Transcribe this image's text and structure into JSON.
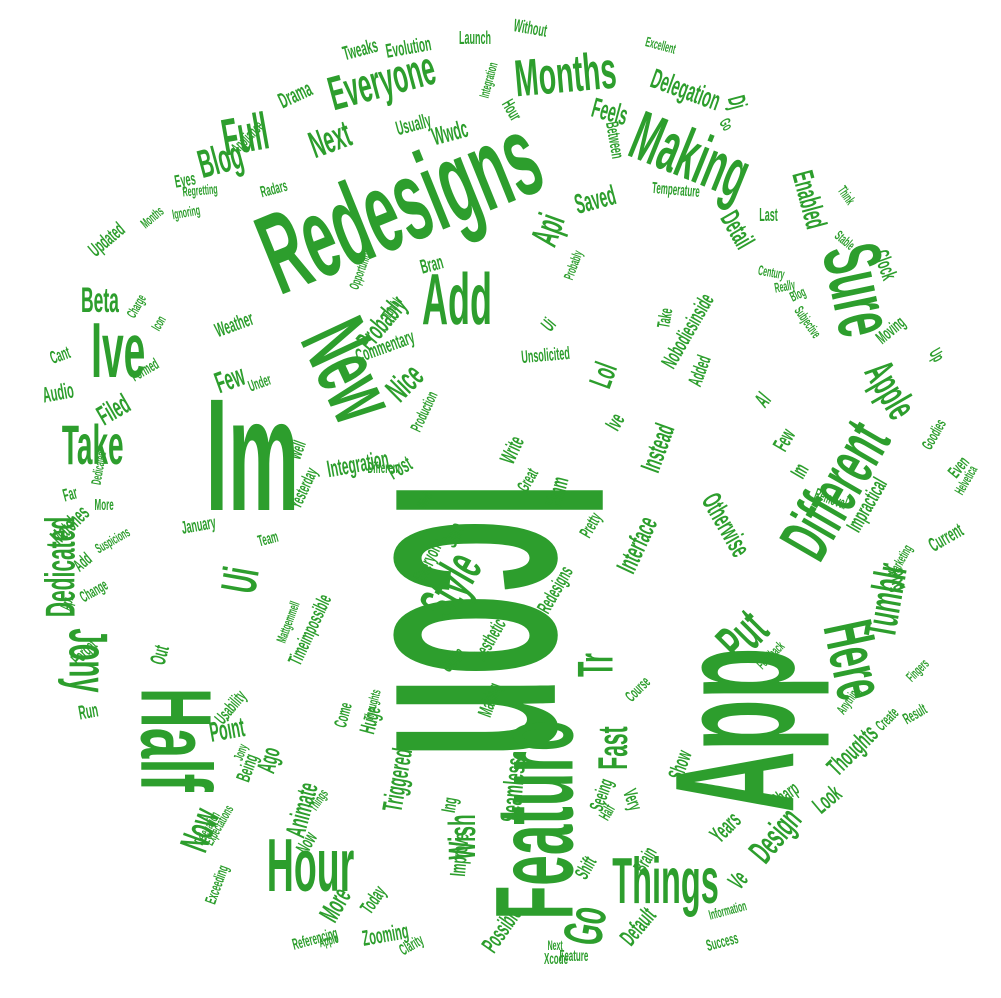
{
  "words": [
    "Icon",
    "App",
    "Im",
    "Redesigns",
    "Feature",
    "Half",
    "New",
    "Sure",
    "Hour",
    "Ive",
    "Add",
    "Different",
    "Making",
    "Things",
    "Here",
    "Months",
    "Everyone",
    "Full",
    "Take",
    "Jony",
    "Style",
    "Go",
    "Tumblr",
    "Put",
    "Ui",
    "Dedicated",
    "Apple",
    "Tr",
    "Blog",
    "Next",
    "Api",
    "Fast",
    "Wish",
    "Otherwise",
    "Design",
    "Ve",
    "More",
    "Now",
    "Beta",
    "Few",
    "Nice",
    "Lol",
    "Instead",
    "Interface",
    "Hmm",
    "Write",
    "Great",
    "Pretty",
    "Integration",
    "Post",
    "Filed",
    "Audio",
    "Probably",
    "Saved",
    "Detail",
    "Enabled",
    "Clock",
    "Delegation",
    "Feels",
    "Dj",
    "Wwdc",
    "Drama",
    "Tweaks",
    "Evolution",
    "Launch",
    "Without",
    "Excellent",
    "Usually",
    "Weather",
    "Animate",
    "Today",
    "Zooming",
    "Possible",
    "Default",
    "Brain",
    "Xcode",
    "Years",
    "Look",
    "Thoughts",
    "Png",
    "Current",
    "Even",
    "Impractical",
    "Show",
    "Triggered",
    "Ing",
    "Seamless",
    "Improve",
    "Gotta",
    "Aesthetic",
    "Sharp",
    "Very",
    "Seeing",
    "Shift",
    "Information",
    "Success",
    "Point",
    "Ago",
    "Being",
    "Expectations",
    "Exceeding",
    "Referencing",
    "Clarity",
    "Run",
    "Forget",
    "Out",
    "Change",
    "Api",
    "Add",
    "Far",
    "Matches",
    "More",
    "Suspicions",
    "Dedicated",
    "Cant",
    "Formed",
    "Charge",
    "Icon",
    "Months",
    "Updated",
    "Eyes",
    "Ignoring",
    "Regretting",
    "Radars",
    "Appliance",
    "Hour",
    "Between",
    "Temperature",
    "Last",
    "Think",
    "Stable",
    "Century",
    "Really",
    "Blog",
    "Subjective",
    "Moving",
    "Up",
    "Goodies",
    "Helvetica",
    "Removal",
    "Marketing",
    "Fingers",
    "Result",
    "Create",
    "Anything",
    "Course",
    "Feedback",
    "Bran",
    "Opportunity",
    "Tumblr",
    "Commentary",
    "Production",
    "Unsolicited",
    "Under",
    "Well",
    "January",
    "Yesterday",
    "Team",
    "Timeimpossible",
    "Mattgemmell",
    "Come",
    "Huge",
    "Thoughts",
    "Jony",
    "Things",
    "Making",
    "Redesigns",
    "Everyone",
    "Sure",
    "Wish",
    "Probably",
    "Nobodiesinside",
    "Ui",
    "Take",
    "Ive",
    "Al",
    "Added",
    "Few",
    "Im",
    "Different",
    "Go",
    "Integration",
    "Delegation",
    "Usability",
    "Now",
    "Half",
    "Next",
    "Feature",
    "Apple",
    "Style",
    "Fast",
    "Beta",
    "Wwdc"
  ]
}
